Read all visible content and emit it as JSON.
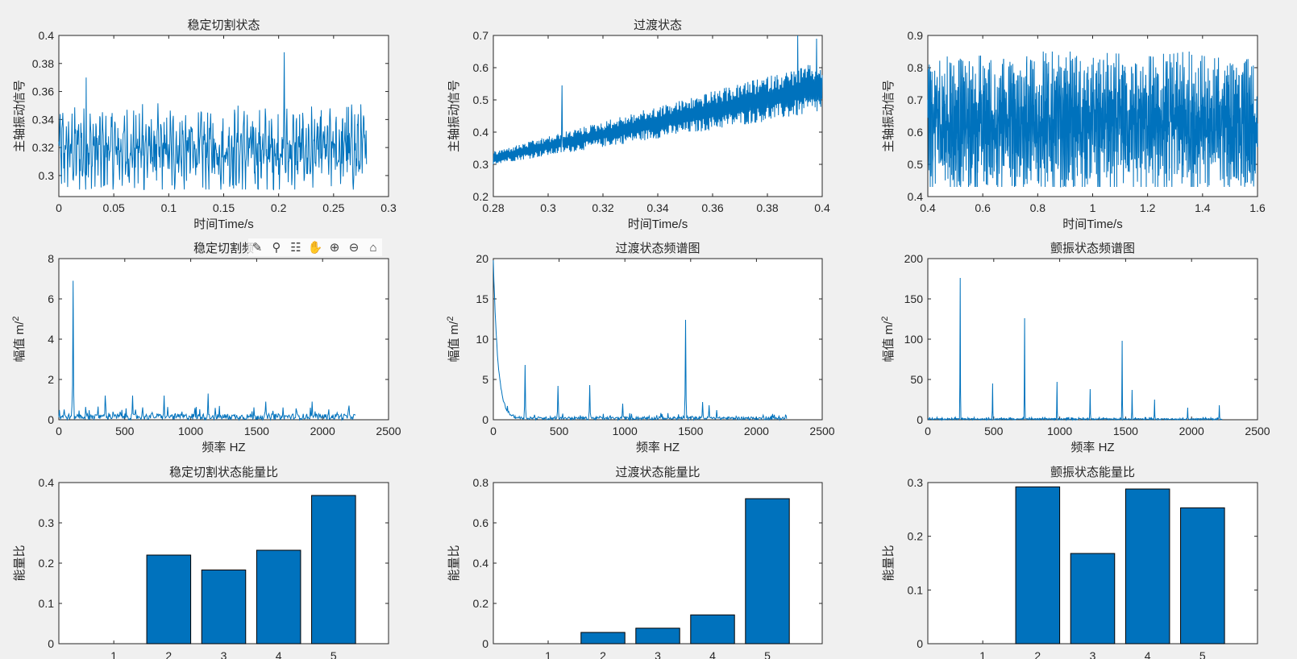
{
  "colors": {
    "series": "#0072BD",
    "axes": "#262626",
    "figure_bg": "#f0f0f0"
  },
  "toolbar": {
    "items": [
      {
        "icon": "brush-icon",
        "glyph": "✎"
      },
      {
        "icon": "data-cursor-icon",
        "glyph": "⚲"
      },
      {
        "icon": "data-tips-icon",
        "glyph": "☷"
      },
      {
        "icon": "pan-hand-icon",
        "glyph": "✋"
      },
      {
        "icon": "zoom-in-icon",
        "glyph": "⊕"
      },
      {
        "icon": "zoom-out-icon",
        "glyph": "⊖"
      },
      {
        "icon": "home-icon",
        "glyph": "⌂"
      }
    ]
  },
  "chart_data": [
    {
      "type": "line",
      "title": "稳定切割状态",
      "xlabel": "时间Time/s",
      "ylabel": "主轴振动信号",
      "xlim": [
        0,
        0.3
      ],
      "ylim": [
        0.285,
        0.4
      ],
      "xticks": [
        0,
        0.05,
        0.1,
        0.15,
        0.2,
        0.25,
        0.3
      ],
      "yticks": [
        0.3,
        0.32,
        0.34,
        0.36,
        0.38,
        0.4
      ],
      "xtick_labels": [
        "0",
        "0.05",
        "0.1",
        "0.15",
        "0.2",
        "0.25",
        "0.3"
      ],
      "ytick_labels": [
        "0.3",
        "0.32",
        "0.34",
        "0.36",
        "0.38",
        "0.4"
      ],
      "series": [
        {
          "x_range": [
            0,
            0.28
          ],
          "samples": 700,
          "baseline": 0.318,
          "band": [
            0.29,
            0.352
          ],
          "peaks": [
            [
              0.025,
              0.37
            ],
            [
              0.205,
              0.388
            ],
            [
              0.262,
              0.349
            ],
            [
              0.076,
              0.351
            ]
          ]
        }
      ]
    },
    {
      "type": "line",
      "title": "过渡状态",
      "xlabel": "时间Time/s",
      "ylabel": "主轴振动信号",
      "xlim": [
        0.28,
        0.4
      ],
      "ylim": [
        0.2,
        0.7
      ],
      "xticks": [
        0.28,
        0.3,
        0.32,
        0.34,
        0.36,
        0.38,
        0.4
      ],
      "yticks": [
        0.2,
        0.3,
        0.4,
        0.5,
        0.6,
        0.7
      ],
      "xtick_labels": [
        "0.28",
        "0.3",
        "0.32",
        "0.34",
        "0.36",
        "0.38",
        "0.4"
      ],
      "ytick_labels": [
        "0.2",
        "0.3",
        "0.4",
        "0.5",
        "0.6",
        "0.7"
      ],
      "series": [
        {
          "x_range": [
            0.28,
            0.4
          ],
          "samples": 700,
          "trend_start": [
            0.3,
            0.34
          ],
          "trend_end": [
            0.46,
            0.62
          ],
          "peaks": [
            [
              0.391,
              0.7
            ],
            [
              0.398,
              0.69
            ],
            [
              0.305,
              0.545
            ]
          ]
        }
      ]
    },
    {
      "type": "line",
      "title": "",
      "xlabel": "时间Time/s",
      "ylabel": "主轴振动信号",
      "xlim": [
        0.4,
        1.6
      ],
      "ylim": [
        0.4,
        0.9
      ],
      "xticks": [
        0.4,
        0.6,
        0.8,
        1,
        1.2,
        1.4,
        1.6
      ],
      "yticks": [
        0.4,
        0.5,
        0.6,
        0.7,
        0.8,
        0.9
      ],
      "xtick_labels": [
        "0.4",
        "0.6",
        "0.8",
        "1",
        "1.2",
        "1.4",
        "1.6"
      ],
      "ytick_labels": [
        "0.4",
        "0.5",
        "0.6",
        "0.7",
        "0.8",
        "0.9"
      ],
      "series": [
        {
          "x_range": [
            0.4,
            1.6
          ],
          "samples": 1800,
          "baseline": 0.625,
          "band": [
            0.43,
            0.85
          ]
        }
      ]
    },
    {
      "type": "line",
      "title": "稳定切割频",
      "xlabel": "频率 HZ",
      "ylabel": "幅值 m/",
      "ylabel_sup": "2",
      "xlim": [
        0,
        2500
      ],
      "ylim": [
        0,
        8
      ],
      "xticks": [
        0,
        500,
        1000,
        1500,
        2000,
        2500
      ],
      "yticks": [
        0,
        2,
        4,
        6,
        8
      ],
      "xtick_labels": [
        "0",
        "500",
        "1000",
        "1500",
        "2000",
        "2500"
      ],
      "ytick_labels": [
        "0",
        "2",
        "4",
        "6",
        "8"
      ],
      "series": [
        {
          "x_range": [
            0,
            2250
          ],
          "samples": 500,
          "noise": 0.5,
          "peaks": [
            [
              110,
              6.9
            ],
            [
              350,
              1.2
            ],
            [
              560,
              1.2
            ],
            [
              800,
              1.2
            ],
            [
              1130,
              1.3
            ],
            [
              1570,
              0.9
            ],
            [
              1920,
              0.9
            ]
          ]
        }
      ]
    },
    {
      "type": "line",
      "title": "过渡状态频谱图",
      "xlabel": "频率 HZ",
      "ylabel": "幅值 m/",
      "ylabel_sup": "2",
      "xlim": [
        0,
        2500
      ],
      "ylim": [
        0,
        20
      ],
      "xticks": [
        0,
        500,
        1000,
        1500,
        2000,
        2500
      ],
      "yticks": [
        0,
        5,
        10,
        15,
        20
      ],
      "xtick_labels": [
        "0",
        "500",
        "1000",
        "1500",
        "2000",
        "2500"
      ],
      "ytick_labels": [
        "0",
        "5",
        "10",
        "15",
        "20"
      ],
      "series": [
        {
          "x_range": [
            0,
            2230
          ],
          "samples": 500,
          "noise": 0.6,
          "decay_start": 19.5,
          "peaks": [
            [
              240,
              6.8
            ],
            [
              490,
              4.2
            ],
            [
              735,
              4.3
            ],
            [
              985,
              2
            ],
            [
              1460,
              12.4
            ],
            [
              1590,
              2.2
            ],
            [
              1640,
              1.8
            ],
            [
              1700,
              1.2
            ]
          ]
        }
      ]
    },
    {
      "type": "line",
      "title": "颤振状态频谱图",
      "xlabel": "频率 HZ",
      "ylabel": "幅值 m/",
      "ylabel_sup": "2",
      "xlim": [
        0,
        2500
      ],
      "ylim": [
        0,
        200
      ],
      "xticks": [
        0,
        500,
        1000,
        1500,
        2000,
        2500
      ],
      "yticks": [
        0,
        50,
        100,
        150,
        200
      ],
      "xtick_labels": [
        "0",
        "500",
        "1000",
        "1500",
        "2000",
        "2500"
      ],
      "ytick_labels": [
        "0",
        "50",
        "100",
        "150",
        "200"
      ],
      "series": [
        {
          "x_range": [
            0,
            2230
          ],
          "samples": 800,
          "noise": 2.5,
          "peaks": [
            [
              245,
              176
            ],
            [
              490,
              45
            ],
            [
              735,
              126
            ],
            [
              980,
              47
            ],
            [
              1230,
              38
            ],
            [
              1475,
              98
            ],
            [
              1550,
              37
            ],
            [
              1720,
              25
            ],
            [
              1970,
              15
            ],
            [
              2210,
              18
            ]
          ]
        }
      ]
    },
    {
      "type": "bar",
      "title": "稳定切割状态能量比",
      "ylabel": "能量比",
      "categories": [
        "1",
        "2",
        "3",
        "4",
        "5"
      ],
      "values": [
        0,
        0.22,
        0.183,
        0.232,
        0.368
      ],
      "xlim": [
        0,
        6
      ],
      "ylim": [
        0,
        0.4
      ],
      "yticks": [
        0,
        0.1,
        0.2,
        0.3,
        0.4
      ],
      "ytick_labels": [
        "0",
        "0.1",
        "0.2",
        "0.3",
        "0.4"
      ]
    },
    {
      "type": "bar",
      "title": "过渡状态能量比",
      "ylabel": "能量比",
      "categories": [
        "1",
        "2",
        "3",
        "4",
        "5"
      ],
      "values": [
        0,
        0.056,
        0.077,
        0.143,
        0.72
      ],
      "xlim": [
        0,
        6
      ],
      "ylim": [
        0,
        0.8
      ],
      "yticks": [
        0,
        0.2,
        0.4,
        0.6,
        0.8
      ],
      "ytick_labels": [
        "0",
        "0.2",
        "0.4",
        "0.6",
        "0.8"
      ]
    },
    {
      "type": "bar",
      "title": "颤振状态能量比",
      "ylabel": "能量比",
      "categories": [
        "1",
        "2",
        "3",
        "4",
        "5"
      ],
      "values": [
        0,
        0.292,
        0.168,
        0.288,
        0.253
      ],
      "xlim": [
        0,
        6
      ],
      "ylim": [
        0,
        0.3
      ],
      "yticks": [
        0,
        0.1,
        0.2,
        0.3
      ],
      "ytick_labels": [
        "0",
        "0.1",
        "0.2",
        "0.3"
      ]
    }
  ]
}
